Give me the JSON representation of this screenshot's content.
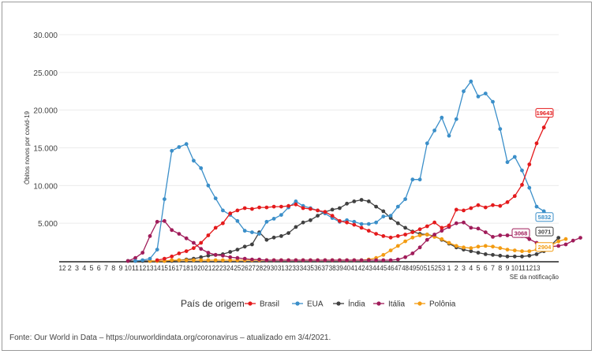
{
  "chart_data": {
    "type": "line",
    "ylabel": "Óbitos novos por covid-19",
    "xlabel": "SE da notificação",
    "ylim": [
      0,
      30000
    ],
    "yticks": [
      {
        "value": 5000,
        "label": "5.000"
      },
      {
        "value": 10000,
        "label": "10.000"
      },
      {
        "value": 15000,
        "label": "15.000"
      },
      {
        "value": 20000,
        "label": "20.000"
      },
      {
        "value": 25000,
        "label": "25.000"
      },
      {
        "value": 30000,
        "label": "30.000"
      }
    ],
    "x_tick_labels": [
      "12",
      "2",
      "3",
      "4",
      "5",
      "6",
      "7",
      "8",
      "9",
      "10",
      "11",
      "12",
      "13",
      "14",
      "15",
      "16",
      "17",
      "18",
      "19",
      "20",
      "21",
      "22",
      "23",
      "24",
      "25",
      "26",
      "27",
      "28",
      "29",
      "30",
      "31",
      "32",
      "33",
      "34",
      "35",
      "36",
      "37",
      "38",
      "39",
      "40",
      "41",
      "42",
      "43",
      "44",
      "45",
      "46",
      "47",
      "48",
      "49",
      "50",
      "51",
      "52",
      "53",
      "1",
      "2",
      "3",
      "4",
      "5",
      "6",
      "7",
      "8",
      "9",
      "10",
      "11",
      "12",
      "13"
    ],
    "legend_title": "País de origem",
    "grid": true,
    "legend_position": "bottom",
    "series": [
      {
        "name": "Brasil",
        "color": "#e41a1c",
        "start_index": 13,
        "values": [
          100,
          300,
          600,
          1000,
          1300,
          1700,
          2400,
          3400,
          4400,
          5000,
          6300,
          6700,
          7000,
          6900,
          7100,
          7100,
          7200,
          7200,
          7300,
          7500,
          7000,
          6900,
          6700,
          6500,
          6000,
          5300,
          5100,
          4800,
          4400,
          4000,
          3600,
          3300,
          3100,
          3300,
          3500,
          3800,
          4200,
          4600,
          5100,
          4400,
          4700,
          6800,
          6700,
          7000,
          7400,
          7100,
          7400,
          7300,
          7800,
          8600,
          10100,
          12800,
          15600,
          17700,
          19643
        ],
        "end_label": "19643"
      },
      {
        "name": "EUA",
        "color": "#3b8fc9",
        "start_index": 10,
        "values": [
          0,
          100,
          300,
          1500,
          8200,
          14600,
          15100,
          15500,
          13300,
          12300,
          10000,
          8300,
          6700,
          6100,
          5300,
          4000,
          3800,
          3600,
          5200,
          5600,
          6100,
          7100,
          7900,
          7300,
          7000,
          6700,
          6300,
          5700,
          5200,
          5400,
          5200,
          4900,
          4900,
          5100,
          5900,
          6000,
          7200,
          8200,
          10800,
          10800,
          15600,
          17300,
          19000,
          16600,
          18800,
          22500,
          23800,
          21800,
          22200,
          21100,
          17500,
          13100,
          13800,
          12000,
          9700,
          7200,
          6600,
          5832
        ],
        "end_label": "5832"
      },
      {
        "name": "Índia",
        "color": "#404040",
        "start_index": 9,
        "values": [
          0,
          0,
          0,
          0,
          0,
          0,
          0,
          100,
          200,
          300,
          500,
          700,
          800,
          900,
          1200,
          1500,
          1900,
          2200,
          3800,
          2800,
          3100,
          3300,
          3700,
          4500,
          5100,
          5400,
          6000,
          6500,
          6800,
          7000,
          7600,
          7900,
          8100,
          7900,
          7200,
          6600,
          5700,
          5000,
          4400,
          3900,
          3600,
          3500,
          3300,
          2800,
          2300,
          1800,
          1500,
          1300,
          1100,
          900,
          800,
          700,
          600,
          600,
          600,
          700,
          900,
          1300,
          2100,
          3071
        ],
        "end_label": "3071"
      },
      {
        "name": "Itália",
        "color": "#a01c5a",
        "start_index": 9,
        "values": [
          0,
          400,
          1100,
          3300,
          5200,
          5300,
          4100,
          3600,
          3000,
          2400,
          1600,
          1100,
          800,
          700,
          500,
          400,
          300,
          200,
          200,
          100,
          100,
          100,
          100,
          100,
          100,
          100,
          100,
          100,
          100,
          100,
          100,
          100,
          100,
          100,
          100,
          100,
          100,
          200,
          500,
          1000,
          1800,
          2800,
          3500,
          4000,
          4500,
          5000,
          5100,
          4400,
          4300,
          3800,
          3200,
          3400,
          3400,
          3400,
          3300,
          2900,
          2400,
          2000,
          1900,
          2000,
          2200,
          2700,
          3068
        ],
        "end_label": "3068"
      },
      {
        "name": "Polônia",
        "color": "#f39c12",
        "start_index": 12,
        "values": [
          0,
          0,
          0,
          100,
          100,
          100,
          100,
          100,
          100,
          100,
          100,
          100,
          100,
          100,
          100,
          100,
          100,
          100,
          100,
          100,
          100,
          100,
          100,
          100,
          100,
          100,
          100,
          100,
          100,
          100,
          200,
          400,
          800,
          1400,
          2000,
          2600,
          3100,
          3400,
          3500,
          3200,
          2900,
          2400,
          2000,
          1800,
          1700,
          1900,
          2000,
          1900,
          1700,
          1500,
          1400,
          1300,
          1300,
          1500,
          1700,
          2100,
          2600,
          2904
        ],
        "end_label": "2904"
      }
    ]
  },
  "source": "Fonte: Our World in Data – https://ourworldindata.org/coronavirus – atualizado em 3/4/2021."
}
